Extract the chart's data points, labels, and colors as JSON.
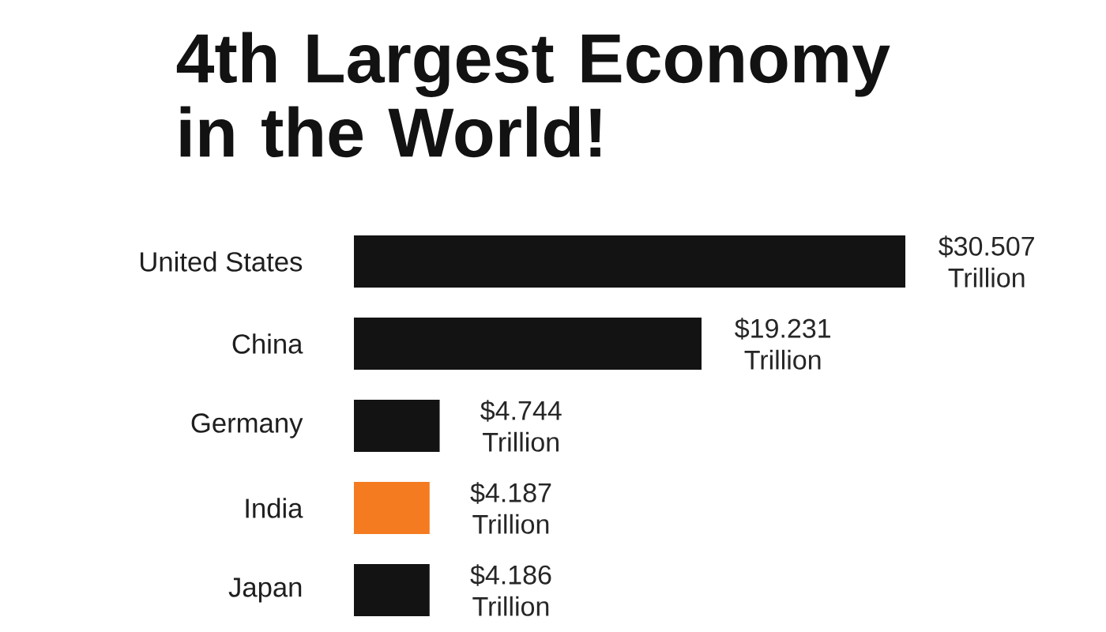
{
  "chart_data": {
    "type": "bar",
    "orientation": "horizontal",
    "title": "4th Largest Economy in the World!",
    "categories": [
      "United States",
      "China",
      "Germany",
      "India",
      "Japan"
    ],
    "values": [
      30.507,
      19.231,
      4.744,
      4.187,
      4.186
    ],
    "colors": [
      "#131313",
      "#131313",
      "#131313",
      "#f47b20",
      "#131313"
    ],
    "value_labels": [
      "$30.507 Trillion",
      "$19.231 Trillion",
      "$4.744 Trillion",
      "$4.187 Trillion",
      "$4.186 Trillion"
    ],
    "tick_labels": "y"
  }
}
